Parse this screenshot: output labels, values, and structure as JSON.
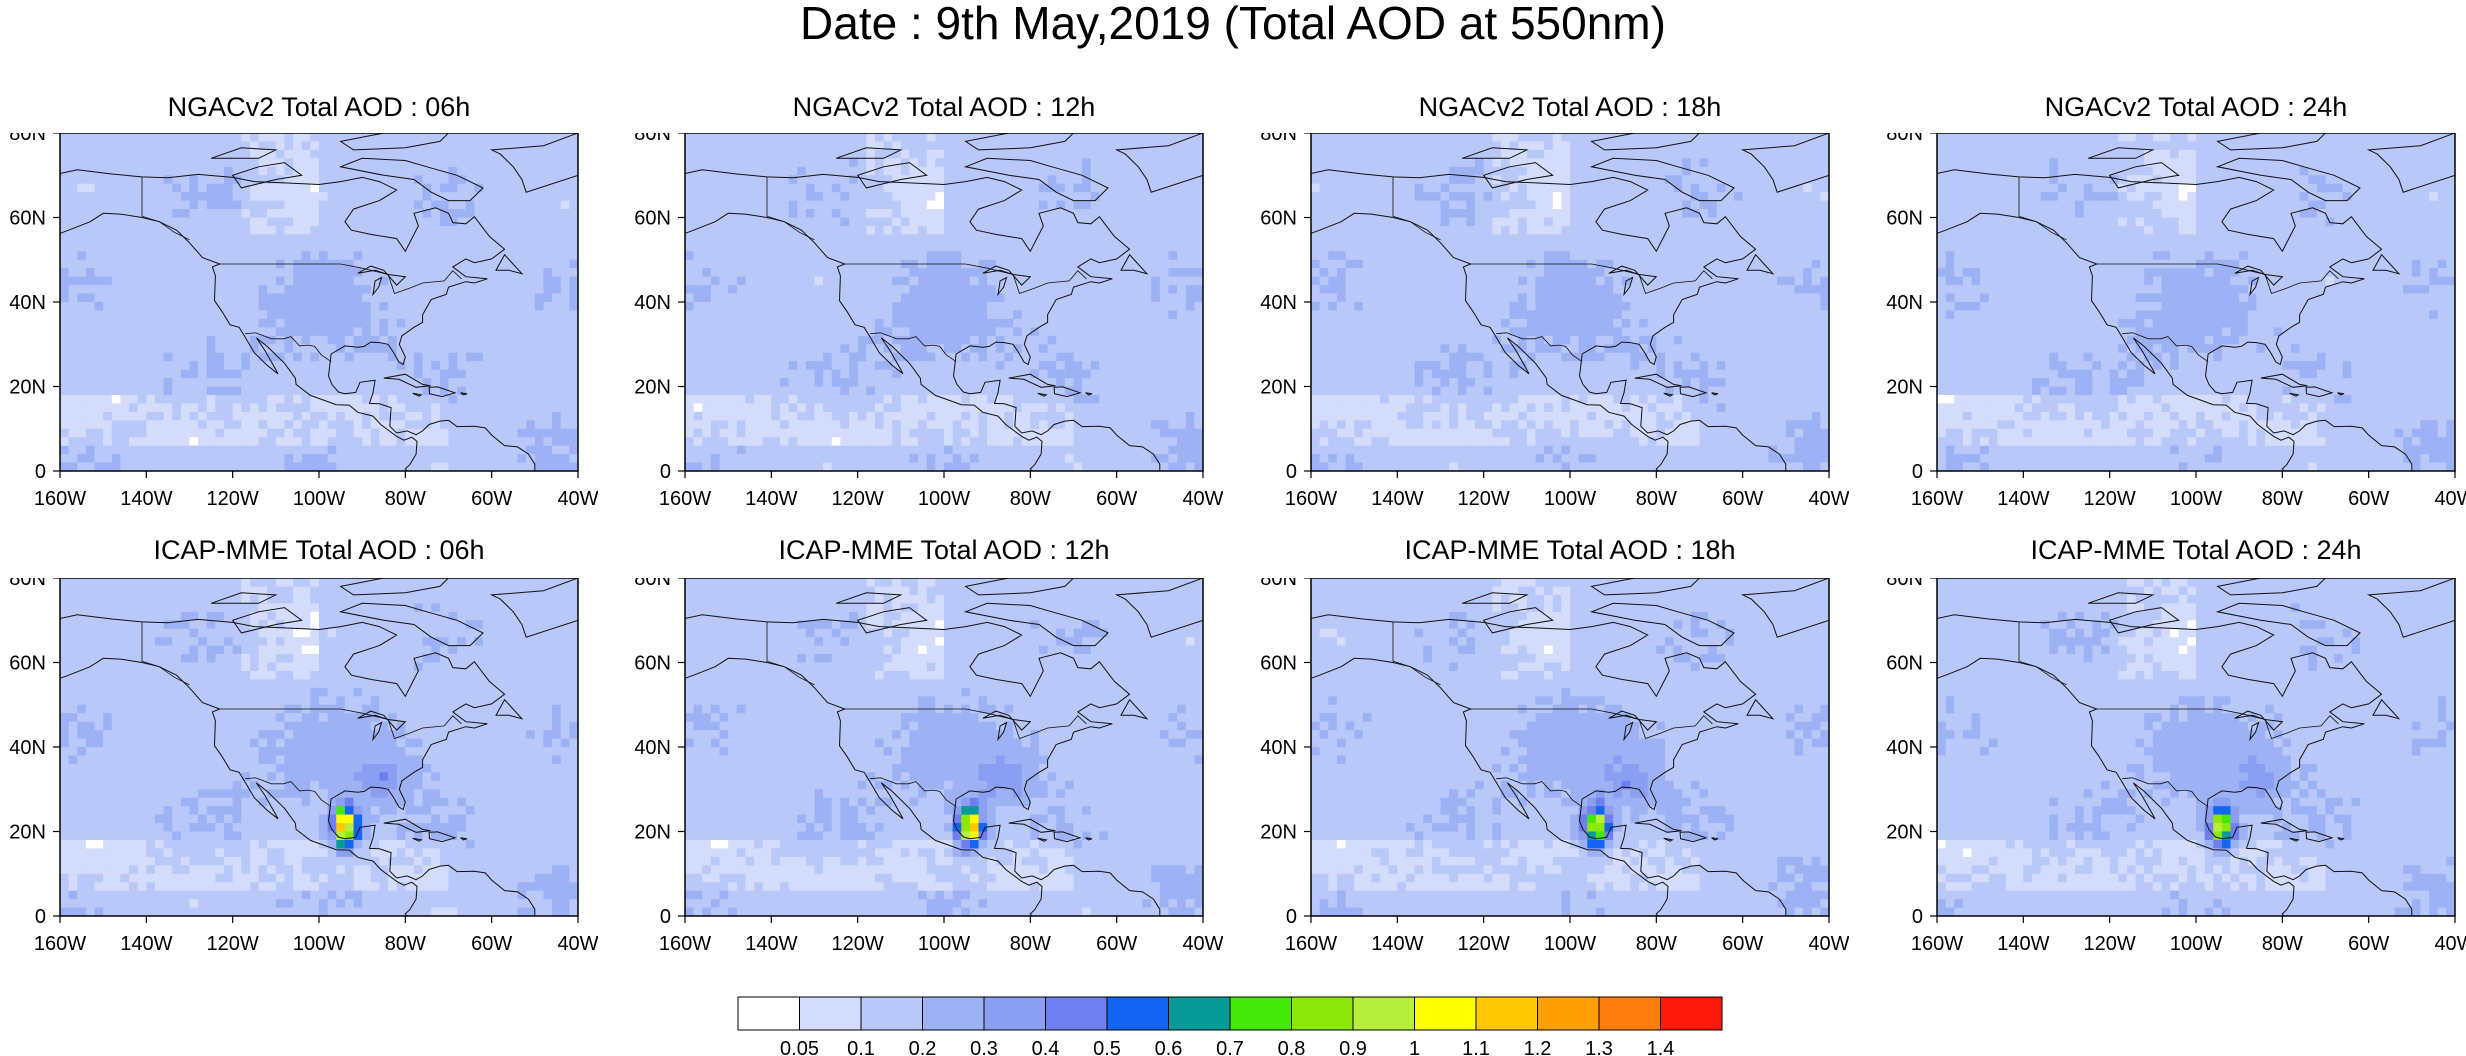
{
  "title": "Date : 9th May,2019 (Total AOD at 550nm)",
  "panels": [
    {
      "title": "NGACv2 Total AOD : 06h",
      "model": "NGACv2",
      "hour": "06h",
      "pattern": "ngac",
      "jet": 0.0
    },
    {
      "title": "NGACv2 Total AOD : 12h",
      "model": "NGACv2",
      "hour": "12h",
      "pattern": "ngac",
      "jet": 0.0
    },
    {
      "title": "NGACv2 Total AOD : 18h",
      "model": "NGACv2",
      "hour": "18h",
      "pattern": "ngac",
      "jet": 0.0
    },
    {
      "title": "NGACv2 Total AOD : 24h",
      "model": "NGACv2",
      "hour": "24h",
      "pattern": "ngac",
      "jet": 0.0
    },
    {
      "title": "ICAP-MME Total AOD : 06h",
      "model": "ICAP-MME",
      "hour": "06h",
      "pattern": "icap",
      "jet": 1.0
    },
    {
      "title": "ICAP-MME Total AOD : 12h",
      "model": "ICAP-MME",
      "hour": "12h",
      "pattern": "icap",
      "jet": 1.0
    },
    {
      "title": "ICAP-MME Total AOD : 18h",
      "model": "ICAP-MME",
      "hour": "18h",
      "pattern": "icap",
      "jet": 0.9
    },
    {
      "title": "ICAP-MME Total AOD : 24h",
      "model": "ICAP-MME",
      "hour": "24h",
      "pattern": "icap",
      "jet": 0.8
    }
  ],
  "axes": {
    "lon_range": [
      -160,
      -40
    ],
    "lat_range": [
      0,
      80
    ],
    "x_ticks": [
      "160W",
      "140W",
      "120W",
      "100W",
      "80W",
      "60W",
      "40W"
    ],
    "y_ticks": [
      "0",
      "20N",
      "40N",
      "60N",
      "80N"
    ]
  },
  "colorbar": {
    "labels": [
      "0.05",
      "0.1",
      "0.2",
      "0.3",
      "0.4",
      "0.5",
      "0.6",
      "0.7",
      "0.8",
      "0.9",
      "1",
      "1.1",
      "1.2",
      "1.3",
      "1.4"
    ],
    "colors": [
      "#ffffff",
      "#d3ddfb",
      "#b8c8f8",
      "#9db2f5",
      "#8a9ef2",
      "#6f7ff0",
      "#1565f5",
      "#089a98",
      "#46e80c",
      "#8be808",
      "#b8ef3d",
      "#ffff00",
      "#ffc800",
      "#ffa000",
      "#ff7d0d",
      "#ff1a0d"
    ]
  }
}
